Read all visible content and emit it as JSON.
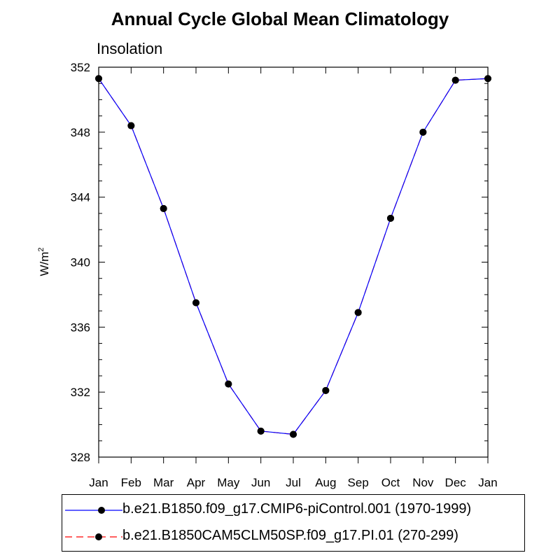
{
  "chart_data": {
    "type": "line",
    "title": "Annual Cycle Global Mean Climatology",
    "subtitle": "Insolation",
    "xlabel": "",
    "ylabel": "W/m",
    "ylabel_sup": "2",
    "categories": [
      "Jan",
      "Feb",
      "Mar",
      "Apr",
      "May",
      "Jun",
      "Jul",
      "Aug",
      "Sep",
      "Oct",
      "Nov",
      "Dec",
      "Jan"
    ],
    "ylim": [
      328,
      352
    ],
    "yticks": [
      328,
      332,
      336,
      340,
      344,
      348,
      352
    ],
    "series": [
      {
        "name": "b.e21.B1850.f09_g17.CMIP6-piControl.001 (1970-1999)",
        "color": "#0000ff",
        "dash": "solid",
        "values": [
          351.3,
          348.4,
          343.3,
          337.5,
          332.5,
          329.6,
          329.4,
          332.1,
          336.9,
          342.7,
          348.0,
          351.2,
          351.3
        ]
      },
      {
        "name": "b.e21.B1850CAM5CLM50SP.f09_g17.PI.01 (270-299)",
        "color": "#ff0000",
        "dash": "dashed",
        "values": [
          351.3,
          348.4,
          343.3,
          337.5,
          332.5,
          329.6,
          329.4,
          332.1,
          336.9,
          342.7,
          348.0,
          351.2,
          351.3
        ]
      }
    ],
    "marker_color": "#000000",
    "legend_placement": "bottom"
  }
}
